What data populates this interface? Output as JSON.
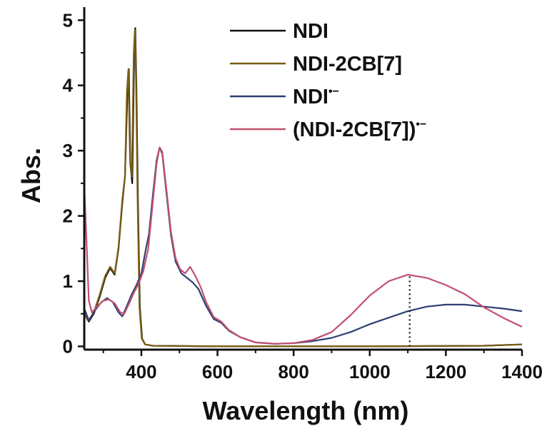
{
  "chart_data": {
    "type": "line",
    "title": "",
    "xlabel": "Wavelength (nm)",
    "ylabel": "Abs.",
    "xlim": [
      250,
      1400
    ],
    "ylim": [
      -0.05,
      5.2
    ],
    "x_ticks": [
      400,
      600,
      800,
      1000,
      1200,
      1400
    ],
    "x_tick_labels": [
      "400",
      "600",
      "800",
      "1000",
      "1200",
      "1400"
    ],
    "y_ticks": [
      0,
      1,
      2,
      3,
      4,
      5
    ],
    "y_tick_labels": [
      "0",
      "1",
      "2",
      "3",
      "4",
      "5"
    ],
    "legend_position": "top-right",
    "annotation": {
      "type": "dotted-vertical-line",
      "x": 1105,
      "y_from": 0,
      "y_to": 1.1
    },
    "series": [
      {
        "name": "NDI",
        "name_base": "NDI",
        "name_sup": "",
        "color": "#111111",
        "points": [
          [
            250,
            0.5
          ],
          [
            262,
            0.38
          ],
          [
            275,
            0.5
          ],
          [
            290,
            0.75
          ],
          [
            305,
            1.05
          ],
          [
            318,
            1.2
          ],
          [
            330,
            1.1
          ],
          [
            340,
            1.5
          ],
          [
            350,
            2.2
          ],
          [
            357,
            2.6
          ],
          [
            363,
            3.8
          ],
          [
            367,
            4.25
          ],
          [
            371,
            2.8
          ],
          [
            376,
            2.5
          ],
          [
            381,
            4.4
          ],
          [
            384,
            4.88
          ],
          [
            387,
            4.0
          ],
          [
            391,
            2.2
          ],
          [
            396,
            0.6
          ],
          [
            402,
            0.12
          ],
          [
            410,
            0.03
          ],
          [
            430,
            0.01
          ],
          [
            600,
            0.0
          ],
          [
            1000,
            0.0
          ],
          [
            1300,
            0.01
          ],
          [
            1400,
            0.03
          ]
        ]
      },
      {
        "name": "NDI-2CB[7]",
        "name_base": "NDI-2CB[7]",
        "name_sup": "",
        "color": "#7a5c12",
        "points": [
          [
            250,
            0.5
          ],
          [
            262,
            0.4
          ],
          [
            275,
            0.52
          ],
          [
            290,
            0.78
          ],
          [
            305,
            1.08
          ],
          [
            318,
            1.22
          ],
          [
            330,
            1.12
          ],
          [
            340,
            1.52
          ],
          [
            350,
            2.25
          ],
          [
            357,
            2.6
          ],
          [
            362,
            3.9
          ],
          [
            366,
            4.25
          ],
          [
            370,
            2.9
          ],
          [
            375,
            2.6
          ],
          [
            380,
            4.5
          ],
          [
            383,
            4.85
          ],
          [
            386,
            4.1
          ],
          [
            390,
            2.3
          ],
          [
            395,
            0.6
          ],
          [
            401,
            0.12
          ],
          [
            410,
            0.03
          ],
          [
            430,
            0.01
          ],
          [
            600,
            0.0
          ],
          [
            1000,
            0.0
          ],
          [
            1300,
            0.01
          ],
          [
            1400,
            0.03
          ]
        ]
      },
      {
        "name": "NDI•−",
        "name_base": "NDI",
        "name_sup": "•−",
        "color": "#2e3f73",
        "points": [
          [
            250,
            0.58
          ],
          [
            262,
            0.4
          ],
          [
            278,
            0.55
          ],
          [
            295,
            0.68
          ],
          [
            310,
            0.74
          ],
          [
            325,
            0.68
          ],
          [
            340,
            0.52
          ],
          [
            350,
            0.46
          ],
          [
            362,
            0.62
          ],
          [
            375,
            0.8
          ],
          [
            388,
            0.95
          ],
          [
            400,
            1.12
          ],
          [
            412,
            1.5
          ],
          [
            420,
            1.72
          ],
          [
            430,
            2.3
          ],
          [
            440,
            2.85
          ],
          [
            448,
            3.05
          ],
          [
            455,
            2.95
          ],
          [
            465,
            2.4
          ],
          [
            478,
            1.7
          ],
          [
            490,
            1.3
          ],
          [
            505,
            1.12
          ],
          [
            520,
            1.05
          ],
          [
            535,
            0.98
          ],
          [
            550,
            0.88
          ],
          [
            570,
            0.62
          ],
          [
            590,
            0.42
          ],
          [
            610,
            0.36
          ],
          [
            630,
            0.24
          ],
          [
            660,
            0.14
          ],
          [
            700,
            0.06
          ],
          [
            750,
            0.04
          ],
          [
            800,
            0.05
          ],
          [
            850,
            0.08
          ],
          [
            900,
            0.13
          ],
          [
            950,
            0.22
          ],
          [
            1000,
            0.34
          ],
          [
            1050,
            0.44
          ],
          [
            1100,
            0.54
          ],
          [
            1150,
            0.61
          ],
          [
            1200,
            0.64
          ],
          [
            1250,
            0.64
          ],
          [
            1300,
            0.61
          ],
          [
            1350,
            0.58
          ],
          [
            1400,
            0.54
          ]
        ]
      },
      {
        "name": "(NDI-2CB[7])•−",
        "name_base": "(NDI-2CB[7])",
        "name_sup": "•−",
        "color": "#c2506e",
        "points": [
          [
            250,
            2.45
          ],
          [
            256,
            1.6
          ],
          [
            262,
            0.7
          ],
          [
            270,
            0.52
          ],
          [
            285,
            0.62
          ],
          [
            300,
            0.7
          ],
          [
            315,
            0.72
          ],
          [
            330,
            0.66
          ],
          [
            345,
            0.52
          ],
          [
            355,
            0.5
          ],
          [
            368,
            0.66
          ],
          [
            380,
            0.82
          ],
          [
            392,
            0.95
          ],
          [
            405,
            1.15
          ],
          [
            418,
            1.5
          ],
          [
            430,
            2.2
          ],
          [
            440,
            2.8
          ],
          [
            448,
            3.05
          ],
          [
            455,
            2.98
          ],
          [
            465,
            2.45
          ],
          [
            478,
            1.75
          ],
          [
            490,
            1.35
          ],
          [
            502,
            1.18
          ],
          [
            515,
            1.12
          ],
          [
            528,
            1.22
          ],
          [
            540,
            1.1
          ],
          [
            555,
            0.92
          ],
          [
            570,
            0.68
          ],
          [
            590,
            0.45
          ],
          [
            610,
            0.38
          ],
          [
            630,
            0.25
          ],
          [
            660,
            0.14
          ],
          [
            700,
            0.06
          ],
          [
            750,
            0.04
          ],
          [
            800,
            0.05
          ],
          [
            850,
            0.1
          ],
          [
            900,
            0.22
          ],
          [
            950,
            0.48
          ],
          [
            1000,
            0.78
          ],
          [
            1050,
            1.0
          ],
          [
            1100,
            1.1
          ],
          [
            1150,
            1.05
          ],
          [
            1200,
            0.94
          ],
          [
            1250,
            0.8
          ],
          [
            1300,
            0.6
          ],
          [
            1350,
            0.44
          ],
          [
            1400,
            0.3
          ]
        ]
      }
    ]
  }
}
